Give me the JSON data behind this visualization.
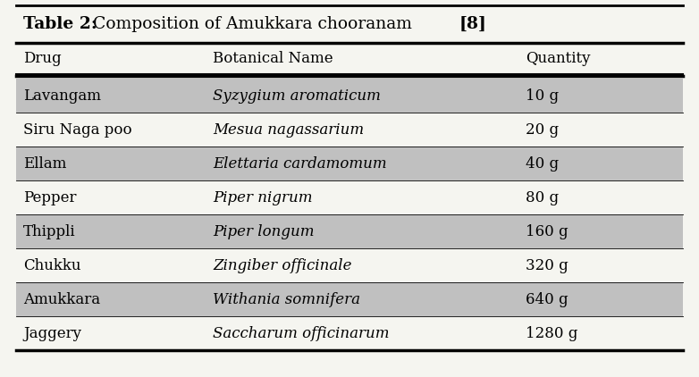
{
  "title_bold": "Table 2:",
  "title_normal": " Composition of Amukkara chooranam ",
  "title_bracket": "[8]",
  "headers": [
    "Drug",
    "Botanical Name",
    "Quantity"
  ],
  "rows": [
    [
      "Lavangam",
      "Syzygium aromaticum",
      "10 g"
    ],
    [
      "Siru Naga poo",
      "Mesua nagassarium",
      "20 g"
    ],
    [
      "Ellam",
      "Elettaria cardamomum",
      "40 g"
    ],
    [
      "Pepper",
      "Piper nigrum",
      "80 g"
    ],
    [
      "Thippli",
      "Piper longum",
      "160 g"
    ],
    [
      "Chukku",
      "Zingiber officinale",
      "320 g"
    ],
    [
      "Amukkara",
      "Withania somnifera",
      "640 g"
    ],
    [
      "Jaggery",
      "Saccharum officinarum",
      "1280 g"
    ]
  ],
  "shaded_rows": [
    0,
    2,
    4,
    6
  ],
  "shade_color": "#C0C0C0",
  "bg_color": "#F5F5F0",
  "header_fontsize": 12,
  "row_fontsize": 12,
  "title_fontsize": 13.5
}
